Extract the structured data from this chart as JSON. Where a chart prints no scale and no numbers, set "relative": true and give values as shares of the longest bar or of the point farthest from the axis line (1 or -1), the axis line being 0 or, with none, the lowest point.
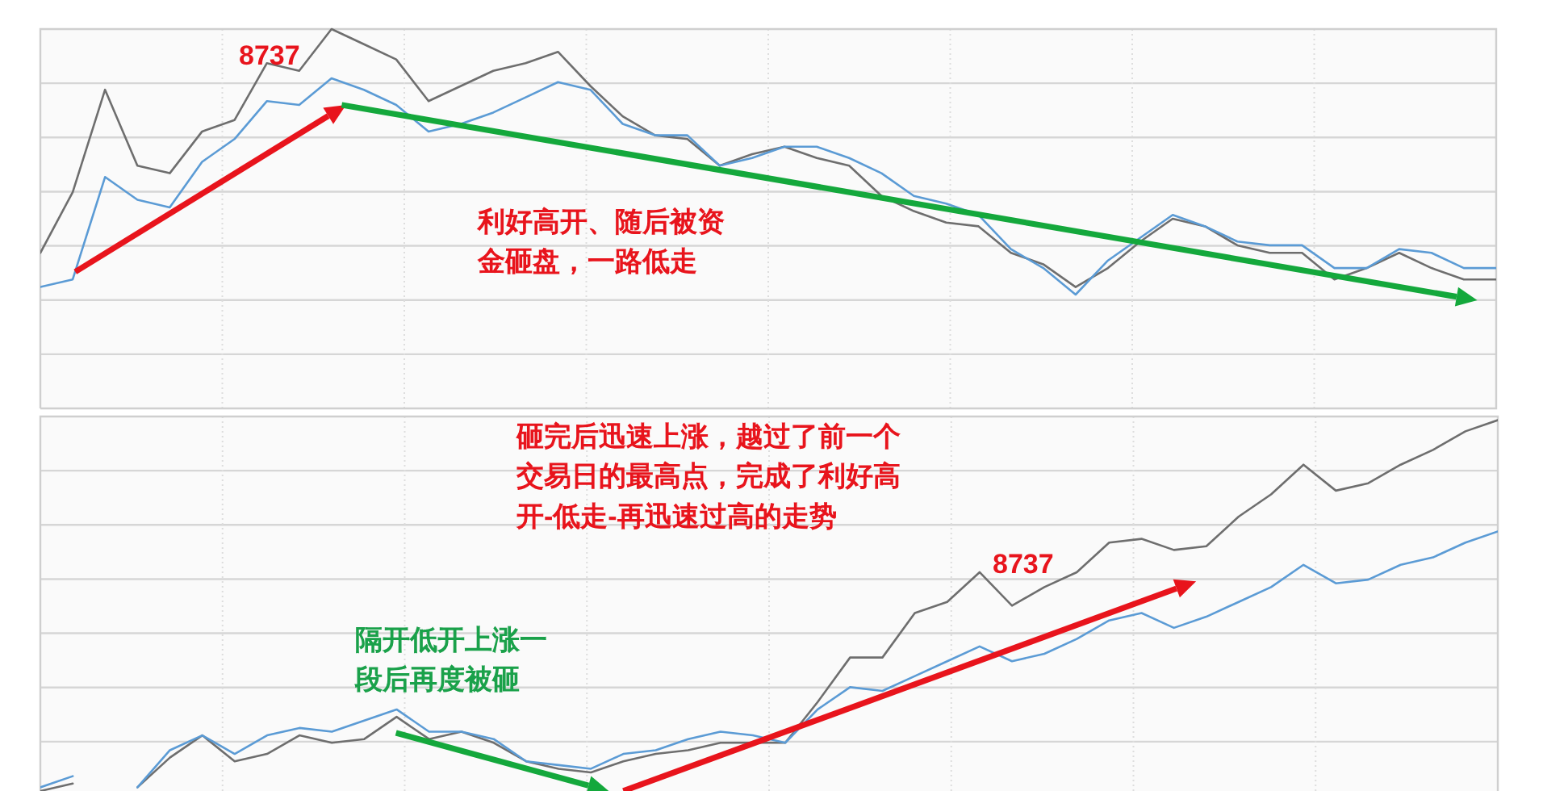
{
  "chart_data": [
    {
      "type": "line",
      "relative": true,
      "grid": true,
      "categories": [
        null,
        null,
        null,
        null,
        null,
        null,
        null,
        null,
        null,
        null,
        null,
        null,
        null,
        null,
        null,
        null,
        null,
        null,
        null,
        null,
        null,
        null,
        null,
        null,
        null,
        null,
        null,
        null,
        null,
        null,
        null,
        null,
        null,
        null,
        null,
        null,
        null,
        null,
        null,
        null,
        null,
        null,
        null,
        null,
        null,
        null
      ],
      "series": [
        {
          "color": "#6e6e6e",
          "values": [
            0.41,
            0.57,
            0.84,
            0.64,
            0.62,
            0.73,
            0.76,
            0.91,
            0.89,
            1.0,
            0.96,
            0.92,
            0.81,
            0.85,
            0.89,
            0.91,
            0.94,
            0.85,
            0.77,
            0.72,
            0.71,
            0.64,
            0.67,
            0.69,
            0.66,
            0.64,
            0.56,
            0.52,
            0.49,
            0.48,
            0.41,
            0.38,
            0.32,
            0.37,
            0.44,
            0.5,
            0.48,
            0.43,
            0.41,
            0.41,
            0.34,
            0.37,
            0.41,
            0.37,
            0.34,
            0.34
          ]
        },
        {
          "color": "#5b9bd5",
          "values": [
            0.32,
            0.34,
            0.61,
            0.55,
            0.53,
            0.65,
            0.71,
            0.81,
            0.8,
            0.87,
            0.84,
            0.8,
            0.73,
            0.75,
            0.78,
            0.82,
            0.86,
            0.84,
            0.75,
            0.72,
            0.72,
            0.64,
            0.66,
            0.69,
            0.69,
            0.66,
            0.62,
            0.56,
            0.54,
            0.51,
            0.42,
            0.37,
            0.3,
            0.39,
            0.45,
            0.51,
            0.48,
            0.44,
            0.43,
            0.43,
            0.37,
            0.37,
            0.42,
            0.41,
            0.37,
            0.37
          ]
        }
      ],
      "annotations": [
        "8737",
        "利好高开、随后被资金砸盘，一路低走"
      ]
    },
    {
      "type": "line",
      "relative": true,
      "grid": true,
      "categories": [
        null,
        null,
        null,
        null,
        null,
        null,
        null,
        null,
        null,
        null,
        null,
        null,
        null,
        null,
        null,
        null,
        null,
        null,
        null,
        null,
        null,
        null,
        null,
        null,
        null,
        null,
        null,
        null,
        null,
        null,
        null,
        null,
        null,
        null,
        null,
        null,
        null,
        null,
        null,
        null,
        null,
        null,
        null,
        null,
        null,
        null
      ],
      "series": [
        {
          "color": "#6e6e6e",
          "values": [
            0.0,
            0.02,
            null,
            0.01,
            0.09,
            0.15,
            0.08,
            0.1,
            0.15,
            0.13,
            0.14,
            0.2,
            0.14,
            0.16,
            0.13,
            0.08,
            0.06,
            0.05,
            0.08,
            0.1,
            0.11,
            0.13,
            0.13,
            0.13,
            0.24,
            0.36,
            0.36,
            0.48,
            0.51,
            0.59,
            0.5,
            0.55,
            0.59,
            0.67,
            0.68,
            0.65,
            0.66,
            0.74,
            0.8,
            0.88,
            0.81,
            0.83,
            0.88,
            0.92,
            0.97,
            1.0
          ]
        },
        {
          "color": "#5b9bd5",
          "values": [
            0.01,
            0.04,
            null,
            0.01,
            0.11,
            0.15,
            0.1,
            0.15,
            0.17,
            0.16,
            0.19,
            0.22,
            0.16,
            0.16,
            0.14,
            0.08,
            0.07,
            0.06,
            0.1,
            0.11,
            0.14,
            0.16,
            0.15,
            0.13,
            0.22,
            0.28,
            0.27,
            0.31,
            0.35,
            0.39,
            0.35,
            0.37,
            0.41,
            0.46,
            0.48,
            0.44,
            0.47,
            0.51,
            0.55,
            0.61,
            0.56,
            0.57,
            0.61,
            0.63,
            0.67,
            0.7
          ]
        }
      ],
      "annotations": [
        "砸完后迅速上涨，越过了前一个交易日的最高点，完成了利好高开-低走-再迅速过高的走势",
        "8737",
        "隔开低开上涨一段后再度被砸"
      ]
    }
  ]
}
